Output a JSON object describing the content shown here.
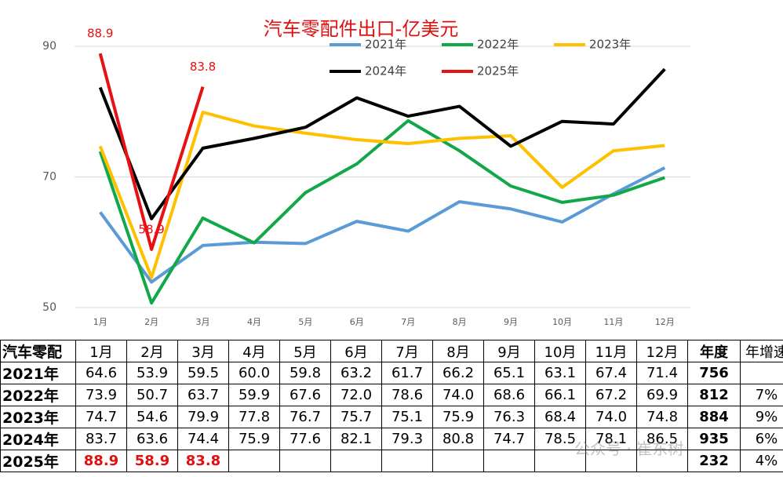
{
  "chart_data": {
    "type": "line",
    "title": "汽车零配件出口-亿美元",
    "categories": [
      "1月",
      "2月",
      "3月",
      "4月",
      "5月",
      "6月",
      "7月",
      "8月",
      "9月",
      "10月",
      "11月",
      "12月"
    ],
    "series": [
      {
        "name": "2021年",
        "color": "#5b9bd5",
        "values": [
          64.6,
          53.9,
          59.5,
          60.0,
          59.8,
          63.2,
          61.7,
          66.2,
          65.1,
          63.1,
          67.4,
          71.4
        ]
      },
      {
        "name": "2022年",
        "color": "#12a84a",
        "values": [
          73.9,
          50.7,
          63.7,
          59.9,
          67.6,
          72.0,
          78.6,
          74.0,
          68.6,
          66.1,
          67.2,
          69.9
        ]
      },
      {
        "name": "2023年",
        "color": "#ffc000",
        "values": [
          74.7,
          54.6,
          79.9,
          77.8,
          76.7,
          75.7,
          75.1,
          75.9,
          76.3,
          68.4,
          74.0,
          74.8
        ]
      },
      {
        "name": "2024年",
        "color": "#000000",
        "values": [
          83.7,
          63.6,
          74.4,
          75.9,
          77.6,
          82.1,
          79.3,
          80.8,
          74.7,
          78.5,
          78.1,
          86.5
        ]
      },
      {
        "name": "2025年",
        "color": "#e81010",
        "values": [
          88.9,
          58.9,
          83.8,
          null,
          null,
          null,
          null,
          null,
          null,
          null,
          null,
          null
        ],
        "data_labels": true
      }
    ],
    "ylim": [
      50,
      90
    ],
    "yticks": [
      50,
      70,
      90
    ],
    "grid": true
  },
  "table": {
    "header": [
      "汽车零配",
      "1月",
      "2月",
      "3月",
      "4月",
      "5月",
      "6月",
      "7月",
      "8月",
      "9月",
      "10月",
      "11月",
      "12月",
      "年度",
      "年增速"
    ],
    "rows": [
      [
        "2021年",
        "64.6",
        "53.9",
        "59.5",
        "60.0",
        "59.8",
        "63.2",
        "61.7",
        "66.2",
        "65.1",
        "63.1",
        "67.4",
        "71.4",
        "756",
        null
      ],
      [
        "2022年",
        "73.9",
        "50.7",
        "63.7",
        "59.9",
        "67.6",
        "72.0",
        "78.6",
        "74.0",
        "68.6",
        "66.1",
        "67.2",
        "69.9",
        "812",
        "7%"
      ],
      [
        "2023年",
        "74.7",
        "54.6",
        "79.9",
        "77.8",
        "76.7",
        "75.7",
        "75.1",
        "75.9",
        "76.3",
        "68.4",
        "74.0",
        "74.8",
        "884",
        "9%"
      ],
      [
        "2024年",
        "83.7",
        "63.6",
        "74.4",
        "75.9",
        "77.6",
        "82.1",
        "79.3",
        "80.8",
        "74.7",
        "78.5",
        "78.1",
        "86.5",
        "935",
        "6%"
      ],
      [
        "2025年",
        "88.9",
        "58.9",
        "83.8",
        null,
        null,
        null,
        null,
        null,
        null,
        null,
        null,
        null,
        "232",
        "4%"
      ]
    ]
  },
  "watermark": "公众号 · 崔东树"
}
